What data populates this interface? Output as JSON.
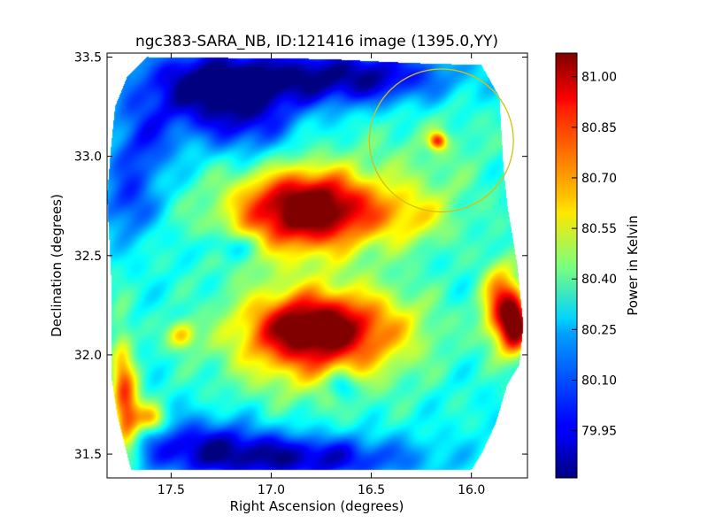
{
  "chart_data": {
    "type": "heatmap",
    "title": "ngc383-SARA_NB, ID:121416 image (1395.0,YY)",
    "xlabel": "Right Ascension (degrees)",
    "ylabel": "Declination (degrees)",
    "xlim": [
      17.82,
      15.72
    ],
    "ylim": [
      31.38,
      33.52
    ],
    "xticks": [
      17.5,
      17.0,
      16.5,
      16.0
    ],
    "xtick_labels": [
      "17.5",
      "17.0",
      "16.5",
      "16.0"
    ],
    "yticks": [
      31.5,
      32.0,
      32.5,
      33.0,
      33.5
    ],
    "ytick_labels": [
      "31.5",
      "32.0",
      "32.5",
      "33.0",
      "33.5"
    ],
    "colorbar": {
      "label": "Power in Kelvin",
      "range": [
        79.81,
        81.07
      ],
      "ticks": [
        79.95,
        80.1,
        80.25,
        80.4,
        80.55,
        80.7,
        80.85,
        81.0
      ],
      "tick_labels": [
        "79.95",
        "80.10",
        "80.25",
        "80.40",
        "80.55",
        "80.70",
        "80.85",
        "81.00"
      ],
      "colormap": "jet"
    },
    "footprint_polygon": [
      [
        17.62,
        33.5
      ],
      [
        16.72,
        33.49
      ],
      [
        16.3,
        33.47
      ],
      [
        15.95,
        33.46
      ],
      [
        15.86,
        33.3
      ],
      [
        15.84,
        32.95
      ],
      [
        15.82,
        32.75
      ],
      [
        15.77,
        32.45
      ],
      [
        15.74,
        32.15
      ],
      [
        15.76,
        31.95
      ],
      [
        15.82,
        31.85
      ],
      [
        15.88,
        31.65
      ],
      [
        15.95,
        31.5
      ],
      [
        16.0,
        31.42
      ],
      [
        17.7,
        31.42
      ],
      [
        17.77,
        31.7
      ],
      [
        17.8,
        31.9
      ],
      [
        17.8,
        32.4
      ],
      [
        17.82,
        32.8
      ],
      [
        17.8,
        33.05
      ],
      [
        17.78,
        33.25
      ],
      [
        17.72,
        33.4
      ]
    ],
    "base_value": 80.3,
    "features": [
      {
        "ra": 17.3,
        "dec": 33.32,
        "value": 79.9,
        "ra_sigma": 0.25,
        "dec_sigma": 0.15
      },
      {
        "ra": 16.9,
        "dec": 33.4,
        "value": 80.0,
        "ra_sigma": 0.45,
        "dec_sigma": 0.1
      },
      {
        "ra": 16.5,
        "dec": 33.4,
        "value": 80.05,
        "ra_sigma": 0.3,
        "dec_sigma": 0.1
      },
      {
        "ra": 17.65,
        "dec": 33.05,
        "value": 80.05,
        "ra_sigma": 0.12,
        "dec_sigma": 0.15
      },
      {
        "ra": 17.1,
        "dec": 33.15,
        "value": 80.1,
        "ra_sigma": 0.15,
        "dec_sigma": 0.12
      },
      {
        "ra": 17.72,
        "dec": 32.75,
        "value": 80.05,
        "ra_sigma": 0.1,
        "dec_sigma": 0.12
      },
      {
        "ra": 16.8,
        "dec": 32.75,
        "value": 80.82,
        "ra_sigma": 0.22,
        "dec_sigma": 0.12
      },
      {
        "ra": 16.85,
        "dec": 32.7,
        "value": 80.72,
        "ra_sigma": 0.3,
        "dec_sigma": 0.18
      },
      {
        "ra": 16.3,
        "dec": 32.7,
        "value": 80.5,
        "ra_sigma": 0.15,
        "dec_sigma": 0.1
      },
      {
        "ra": 16.17,
        "dec": 33.08,
        "value": 80.78,
        "ra_sigma": 0.03,
        "dec_sigma": 0.03
      },
      {
        "ra": 16.2,
        "dec": 33.0,
        "value": 80.4,
        "ra_sigma": 0.25,
        "dec_sigma": 0.25
      },
      {
        "ra": 16.8,
        "dec": 32.15,
        "value": 80.85,
        "ra_sigma": 0.22,
        "dec_sigma": 0.12
      },
      {
        "ra": 16.8,
        "dec": 32.05,
        "value": 80.7,
        "ra_sigma": 0.3,
        "dec_sigma": 0.18
      },
      {
        "ra": 16.4,
        "dec": 32.15,
        "value": 80.45,
        "ra_sigma": 0.2,
        "dec_sigma": 0.15
      },
      {
        "ra": 15.85,
        "dec": 32.25,
        "value": 80.85,
        "ra_sigma": 0.07,
        "dec_sigma": 0.15
      },
      {
        "ra": 15.78,
        "dec": 32.15,
        "value": 80.95,
        "ra_sigma": 0.05,
        "dec_sigma": 0.1
      },
      {
        "ra": 17.72,
        "dec": 31.7,
        "value": 80.8,
        "ra_sigma": 0.05,
        "dec_sigma": 0.15
      },
      {
        "ra": 17.75,
        "dec": 31.95,
        "value": 80.55,
        "ra_sigma": 0.04,
        "dec_sigma": 0.2
      },
      {
        "ra": 17.6,
        "dec": 31.68,
        "value": 80.7,
        "ra_sigma": 0.05,
        "dec_sigma": 0.05
      },
      {
        "ra": 17.45,
        "dec": 32.1,
        "value": 80.65,
        "ra_sigma": 0.05,
        "dec_sigma": 0.05
      },
      {
        "ra": 16.85,
        "dec": 31.48,
        "value": 79.9,
        "ra_sigma": 0.4,
        "dec_sigma": 0.08
      },
      {
        "ra": 17.35,
        "dec": 31.55,
        "value": 80.0,
        "ra_sigma": 0.25,
        "dec_sigma": 0.1
      },
      {
        "ra": 16.65,
        "dec": 31.85,
        "value": 80.05,
        "ra_sigma": 0.05,
        "dec_sigma": 0.05
      },
      {
        "ra": 17.2,
        "dec": 32.55,
        "value": 80.1,
        "ra_sigma": 0.1,
        "dec_sigma": 0.05
      }
    ],
    "circle": {
      "ra": 16.15,
      "dec": 33.08,
      "ra_radius": 0.36,
      "dec_radius": 0.36,
      "color": "#d4c00e"
    },
    "legend": "none",
    "grid": false
  }
}
